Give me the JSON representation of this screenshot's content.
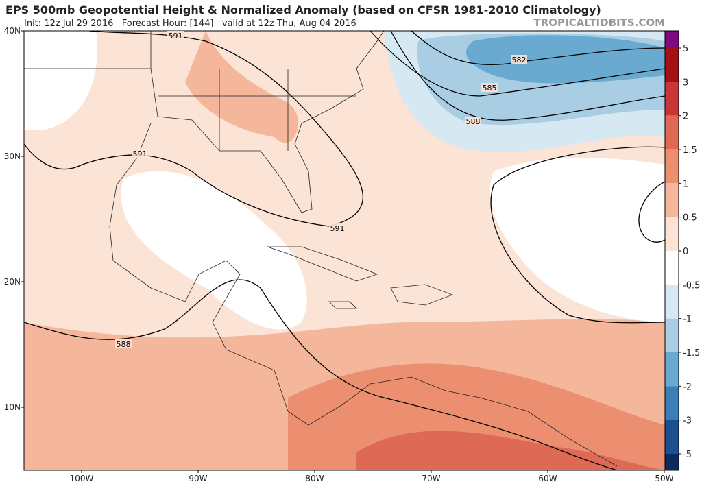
{
  "header": {
    "title": "EPS 500mb Geopotential Height & Normalized Anomaly (based on CFSR 1981-2010 Climatology)",
    "subtitle": "Init: 12z Jul 29 2016   Forecast Hour: [144]   valid at 12z Thu, Aug 04 2016",
    "site": "TROPICALTIDBITS.COM"
  },
  "map": {
    "lat_labels": [
      "40N",
      "30N",
      "20N",
      "10N"
    ],
    "lon_labels": [
      "100W",
      "90W",
      "80W",
      "70W",
      "60W",
      "50W"
    ],
    "contour_labels": [
      "591",
      "582",
      "585",
      "588",
      "591",
      "591",
      "588"
    ]
  },
  "colorbar": {
    "labels": [
      5,
      3,
      2,
      1.5,
      1,
      0.5,
      0,
      -0.5,
      -1,
      -1.5,
      -2,
      -3,
      -5
    ],
    "colors": [
      "#7f0a80",
      "#a50f15",
      "#c8363a",
      "#de6a55",
      "#eb8f70",
      "#f4b79b",
      "#fbe3d6",
      "#ffffff",
      "#d6e8f2",
      "#a9cde3",
      "#6aa9d0",
      "#3b7fb8",
      "#1c4f8f",
      "#0b2a5e"
    ]
  }
}
